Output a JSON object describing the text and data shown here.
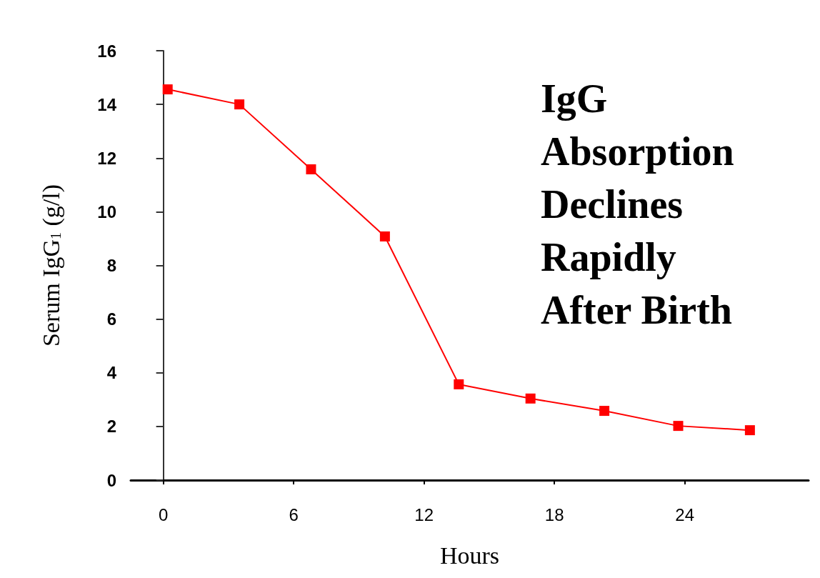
{
  "chart_data": {
    "type": "line",
    "title": "IgG Absorption Declines Rapidly After Birth",
    "xlabel": "Hours",
    "ylabel": "Serum IgG$_{1}$ (g/l)",
    "x": [
      0.2,
      3.5,
      6.8,
      10.2,
      13.6,
      16.9,
      20.3,
      23.7,
      27.0
    ],
    "series": [
      {
        "color": "#ff0000",
        "values": [
          14.56,
          14.0,
          11.58,
          9.08,
          3.57,
          3.04,
          2.58,
          2.02,
          1.86
        ]
      }
    ],
    "xlim": [
      -1.5,
      29.7
    ],
    "xticks": [
      0,
      6,
      12,
      18,
      24
    ],
    "ylim": [
      0,
      16
    ],
    "yticks": [
      0,
      2,
      4,
      6,
      8,
      10,
      12,
      14,
      16
    ],
    "marker": "square",
    "line_style": "solid"
  }
}
